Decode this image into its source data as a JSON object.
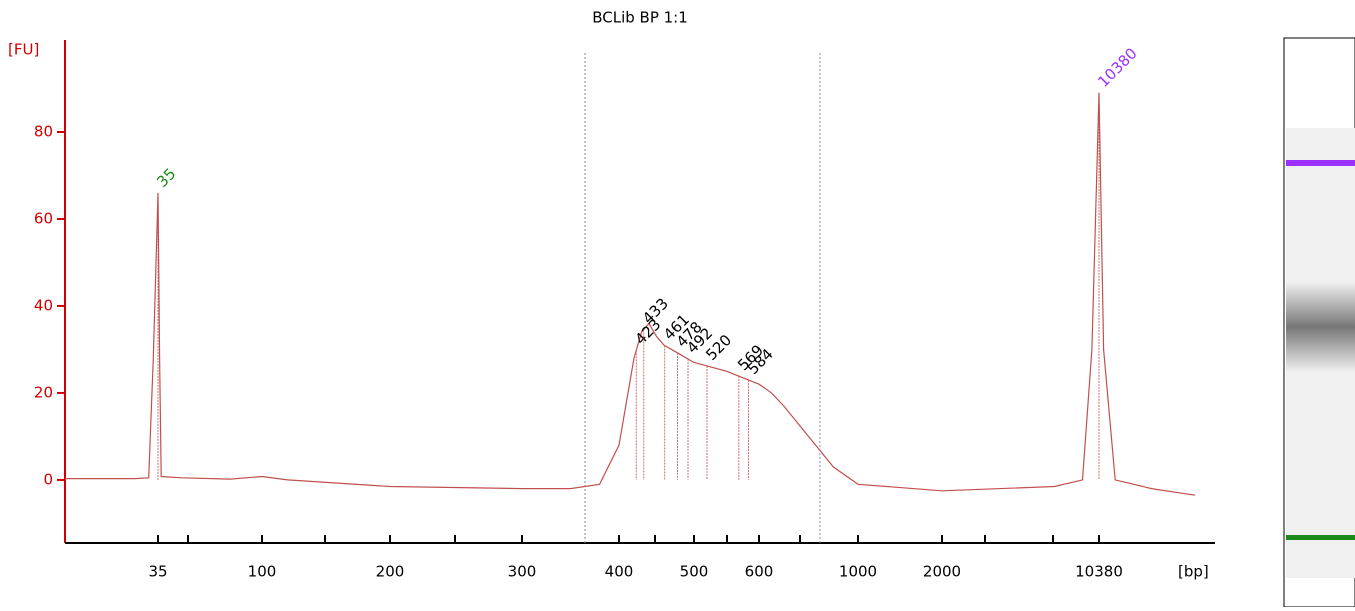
{
  "chart_data": {
    "type": "line",
    "title": "BCLib BP 1:1",
    "ylabel": "[FU]",
    "xlabel": "[bp]",
    "x": [
      15,
      30,
      33,
      34,
      35,
      36,
      37,
      50,
      80,
      100,
      120,
      200,
      300,
      350,
      380,
      400,
      420,
      430,
      440,
      450,
      460,
      480,
      500,
      550,
      600,
      650,
      700,
      800,
      900,
      1000,
      2000,
      8000,
      9500,
      10000,
      10380,
      10700,
      11500,
      14000,
      17000
    ],
    "series": [
      {
        "color": "#c0504d",
        "values": [
          0.3,
          0.3,
          0.5,
          28,
          66,
          28,
          0.8,
          0.5,
          0.2,
          0.8,
          0,
          -1.5,
          -2,
          -2,
          -1,
          8,
          28,
          34,
          36,
          33,
          31,
          29,
          27,
          25,
          22,
          20,
          17,
          10,
          3,
          -1,
          -2.5,
          -1.5,
          0,
          30,
          89,
          30,
          0,
          -2,
          -3.5
        ]
      }
    ],
    "xlim": [
      15,
      17000
    ],
    "ylim": [
      -14.5,
      100
    ],
    "xticks": [
      35,
      100,
      200,
      300,
      400,
      500,
      600,
      1000,
      2000,
      10380
    ],
    "yticks": [
      0,
      20,
      40,
      60,
      80
    ],
    "peaks": [
      {
        "x": 35,
        "color": "#1a8a1a"
      },
      {
        "x": 423,
        "color": "#000000"
      },
      {
        "x": 433,
        "color": "#000000"
      },
      {
        "x": 461,
        "color": "#000000"
      },
      {
        "x": 478,
        "color": "#000000"
      },
      {
        "x": 492,
        "color": "#000000"
      },
      {
        "x": 520,
        "color": "#000000"
      },
      {
        "x": 569,
        "color": "#000000"
      },
      {
        "x": 584,
        "color": "#000000"
      },
      {
        "x": 10380,
        "color": "#9b30ff"
      }
    ],
    "region": [
      365,
      846
    ]
  }
}
